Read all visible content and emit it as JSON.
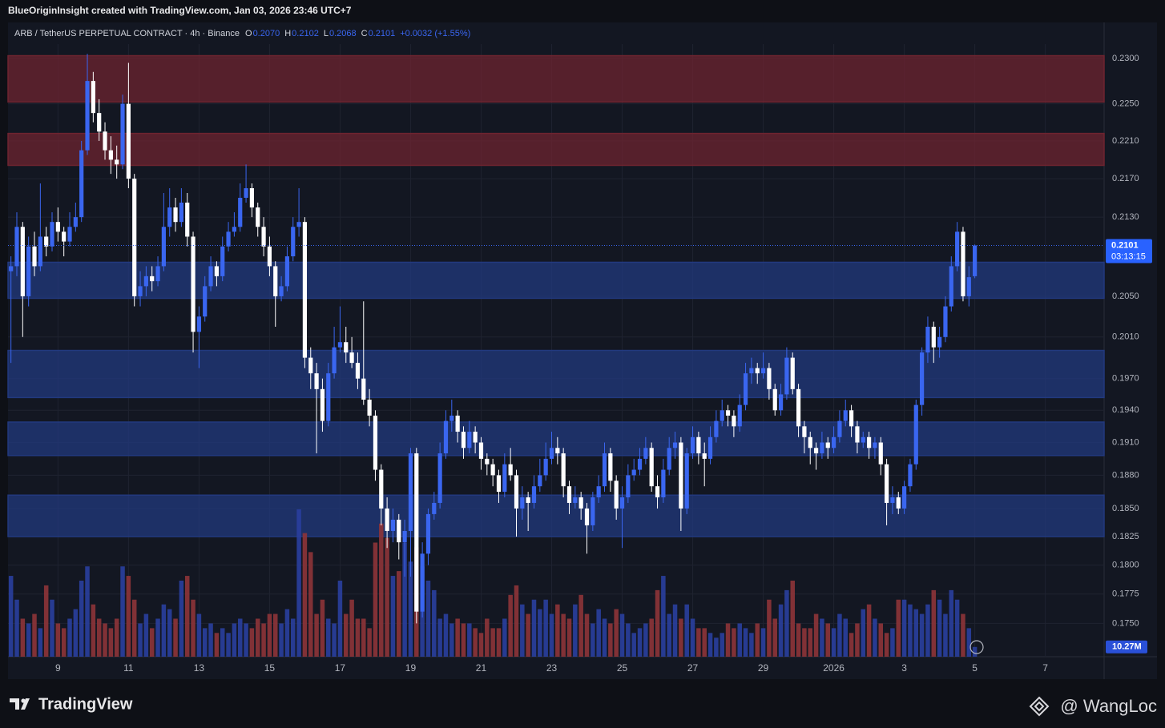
{
  "header": {
    "credit": "BlueOriginInsight created with TradingView.com, Jan 03, 2026 23:46 UTC+7"
  },
  "footer": {
    "brand": "TradingView",
    "watermark": "@ WangLoc"
  },
  "chart_data": {
    "type": "candlestick",
    "legend": {
      "symbol": "ARB / TetherUS PERPETUAL CONTRACT · 4h · Binance",
      "items": [
        {
          "key": "O",
          "value": "0.2070"
        },
        {
          "key": "H",
          "value": "0.2102"
        },
        {
          "key": "L",
          "value": "0.2068"
        },
        {
          "key": "C",
          "value": "0.2101"
        }
      ],
      "change": "+0.0032 (+1.55%)"
    },
    "log_scale": true,
    "grid": true,
    "up_color": "#3a66f0",
    "down_color": "#ffffff",
    "volume_up_color": "#2a3f9e",
    "volume_down_color": "#8e3438",
    "ylim": [
      0.1722,
      0.2316
    ],
    "yticks": [
      {
        "value": 0.23,
        "label": "0.2300"
      },
      {
        "value": 0.225,
        "label": "0.2250"
      },
      {
        "value": 0.221,
        "label": "0.2210"
      },
      {
        "value": 0.217,
        "label": "0.2170"
      },
      {
        "value": 0.213,
        "label": "0.2130"
      },
      {
        "value": 0.205,
        "label": "0.2050"
      },
      {
        "value": 0.201,
        "label": "0.2010"
      },
      {
        "value": 0.197,
        "label": "0.1970"
      },
      {
        "value": 0.194,
        "label": "0.1940"
      },
      {
        "value": 0.191,
        "label": "0.1910"
      },
      {
        "value": 0.188,
        "label": "0.1880"
      },
      {
        "value": 0.185,
        "label": "0.1850"
      },
      {
        "value": 0.1825,
        "label": "0.1825"
      },
      {
        "value": 0.18,
        "label": "0.1800"
      },
      {
        "value": 0.1775,
        "label": "0.1775"
      },
      {
        "value": 0.175,
        "label": "0.1750"
      }
    ],
    "xlim": [
      -0.5,
      186
    ],
    "xticks": [
      {
        "value": 8,
        "label": "9"
      },
      {
        "value": 20,
        "label": "11"
      },
      {
        "value": 32,
        "label": "13"
      },
      {
        "value": 44,
        "label": "15"
      },
      {
        "value": 56,
        "label": "17"
      },
      {
        "value": 68,
        "label": "19"
      },
      {
        "value": 80,
        "label": "21"
      },
      {
        "value": 92,
        "label": "23"
      },
      {
        "value": 104,
        "label": "25"
      },
      {
        "value": 116,
        "label": "27"
      },
      {
        "value": 128,
        "label": "29"
      },
      {
        "value": 140,
        "label": "2026"
      },
      {
        "value": 152,
        "label": "3"
      },
      {
        "value": 164,
        "label": "5"
      },
      {
        "value": 176,
        "label": "7"
      }
    ],
    "zones": [
      {
        "color": "#6e2430",
        "range": [
          0.2252,
          0.2303
        ]
      },
      {
        "color": "#6e2430",
        "range": [
          0.2184,
          0.2218
        ]
      },
      {
        "color": "#22397e",
        "range": [
          0.2048,
          0.2084
        ]
      },
      {
        "color": "#22397e",
        "range": [
          0.1952,
          0.1997
        ]
      },
      {
        "color": "#22397e",
        "range": [
          0.1898,
          0.1929
        ]
      },
      {
        "color": "#22397e",
        "range": [
          0.1825,
          0.1862
        ]
      }
    ],
    "last_price": {
      "value": 0.2101,
      "label": "0.2101"
    },
    "countdown": "03:13:15",
    "volume_label": "10.27M",
    "volume_ylim": [
      0,
      160
    ],
    "candles": [
      [
        0.2075,
        0.209,
        0.1985,
        0.208
      ],
      [
        0.208,
        0.2135,
        0.207,
        0.212
      ],
      [
        0.212,
        0.2125,
        0.201,
        0.205
      ],
      [
        0.205,
        0.211,
        0.204,
        0.21
      ],
      [
        0.21,
        0.2115,
        0.207,
        0.208
      ],
      [
        0.208,
        0.2165,
        0.2075,
        0.211
      ],
      [
        0.211,
        0.212,
        0.209,
        0.21
      ],
      [
        0.21,
        0.2135,
        0.2095,
        0.2125
      ],
      [
        0.2125,
        0.214,
        0.2105,
        0.2115
      ],
      [
        0.2115,
        0.212,
        0.209,
        0.2105
      ],
      [
        0.2105,
        0.2135,
        0.21,
        0.212
      ],
      [
        0.212,
        0.2145,
        0.2115,
        0.213
      ],
      [
        0.213,
        0.221,
        0.2125,
        0.22
      ],
      [
        0.22,
        0.2305,
        0.2195,
        0.2275
      ],
      [
        0.2275,
        0.2285,
        0.223,
        0.224
      ],
      [
        0.224,
        0.2255,
        0.221,
        0.222
      ],
      [
        0.222,
        0.223,
        0.219,
        0.22
      ],
      [
        0.22,
        0.2215,
        0.2175,
        0.219
      ],
      [
        0.219,
        0.2205,
        0.217,
        0.2185
      ],
      [
        0.2185,
        0.226,
        0.218,
        0.225
      ],
      [
        0.225,
        0.2295,
        0.216,
        0.217
      ],
      [
        0.217,
        0.2175,
        0.204,
        0.205
      ],
      [
        0.205,
        0.2075,
        0.204,
        0.206
      ],
      [
        0.206,
        0.208,
        0.205,
        0.207
      ],
      [
        0.207,
        0.208,
        0.2055,
        0.2065
      ],
      [
        0.2065,
        0.209,
        0.206,
        0.208
      ],
      [
        0.208,
        0.2155,
        0.2075,
        0.212
      ],
      [
        0.212,
        0.216,
        0.211,
        0.214
      ],
      [
        0.214,
        0.215,
        0.2115,
        0.2125
      ],
      [
        0.2125,
        0.216,
        0.212,
        0.2145
      ],
      [
        0.2145,
        0.2155,
        0.21,
        0.211
      ],
      [
        0.211,
        0.2115,
        0.1995,
        0.2015
      ],
      [
        0.2015,
        0.204,
        0.198,
        0.203
      ],
      [
        0.203,
        0.207,
        0.2025,
        0.206
      ],
      [
        0.206,
        0.209,
        0.2055,
        0.208
      ],
      [
        0.208,
        0.2085,
        0.206,
        0.207
      ],
      [
        0.207,
        0.211,
        0.2065,
        0.21
      ],
      [
        0.21,
        0.2125,
        0.2095,
        0.2115
      ],
      [
        0.2115,
        0.2135,
        0.211,
        0.212
      ],
      [
        0.212,
        0.2165,
        0.2115,
        0.215
      ],
      [
        0.215,
        0.2185,
        0.2145,
        0.216
      ],
      [
        0.216,
        0.2165,
        0.213,
        0.214
      ],
      [
        0.214,
        0.2145,
        0.211,
        0.212
      ],
      [
        0.212,
        0.213,
        0.209,
        0.21
      ],
      [
        0.21,
        0.211,
        0.207,
        0.208
      ],
      [
        0.208,
        0.2085,
        0.202,
        0.205
      ],
      [
        0.205,
        0.207,
        0.2045,
        0.206
      ],
      [
        0.206,
        0.21,
        0.2055,
        0.209
      ],
      [
        0.209,
        0.213,
        0.2085,
        0.212
      ],
      [
        0.212,
        0.216,
        0.211,
        0.2125
      ],
      [
        0.2125,
        0.213,
        0.198,
        0.199
      ],
      [
        0.199,
        0.2,
        0.196,
        0.1975
      ],
      [
        0.1975,
        0.1985,
        0.19,
        0.196
      ],
      [
        0.196,
        0.197,
        0.192,
        0.193
      ],
      [
        0.193,
        0.1985,
        0.1925,
        0.1975
      ],
      [
        0.1975,
        0.202,
        0.197,
        0.2
      ],
      [
        0.2,
        0.204,
        0.1995,
        0.2005
      ],
      [
        0.2005,
        0.202,
        0.1985,
        0.1995
      ],
      [
        0.1995,
        0.201,
        0.198,
        0.1985
      ],
      [
        0.1985,
        0.1995,
        0.196,
        0.197
      ],
      [
        0.197,
        0.2045,
        0.1945,
        0.195
      ],
      [
        0.195,
        0.196,
        0.1925,
        0.1935
      ],
      [
        0.1935,
        0.194,
        0.1875,
        0.1885
      ],
      [
        0.1885,
        0.189,
        0.1835,
        0.185
      ],
      [
        0.185,
        0.186,
        0.1815,
        0.183
      ],
      [
        0.183,
        0.185,
        0.182,
        0.184
      ],
      [
        0.184,
        0.1845,
        0.1805,
        0.182
      ],
      [
        0.182,
        0.184,
        0.179,
        0.183
      ],
      [
        0.183,
        0.1905,
        0.179,
        0.19
      ],
      [
        0.19,
        0.1905,
        0.175,
        0.176
      ],
      [
        0.176,
        0.182,
        0.1755,
        0.181
      ],
      [
        0.181,
        0.185,
        0.18,
        0.1845
      ],
      [
        0.1845,
        0.1865,
        0.184,
        0.1855
      ],
      [
        0.1855,
        0.191,
        0.185,
        0.19
      ],
      [
        0.19,
        0.194,
        0.1895,
        0.193
      ],
      [
        0.193,
        0.195,
        0.192,
        0.1935
      ],
      [
        0.1935,
        0.194,
        0.191,
        0.192
      ],
      [
        0.192,
        0.1925,
        0.1895,
        0.1905
      ],
      [
        0.1905,
        0.193,
        0.19,
        0.192
      ],
      [
        0.192,
        0.1925,
        0.19,
        0.191
      ],
      [
        0.191,
        0.1915,
        0.1885,
        0.1895
      ],
      [
        0.1895,
        0.19,
        0.188,
        0.189
      ],
      [
        0.189,
        0.1895,
        0.187,
        0.188
      ],
      [
        0.188,
        0.1885,
        0.1855,
        0.1865
      ],
      [
        0.1865,
        0.19,
        0.186,
        0.189
      ],
      [
        0.189,
        0.1905,
        0.1875,
        0.188
      ],
      [
        0.188,
        0.1885,
        0.1825,
        0.185
      ],
      [
        0.185,
        0.187,
        0.184,
        0.186
      ],
      [
        0.186,
        0.1865,
        0.183,
        0.1855
      ],
      [
        0.1855,
        0.188,
        0.185,
        0.187
      ],
      [
        0.187,
        0.1895,
        0.1865,
        0.188
      ],
      [
        0.188,
        0.191,
        0.1875,
        0.1895
      ],
      [
        0.1895,
        0.192,
        0.189,
        0.1905
      ],
      [
        0.1905,
        0.1915,
        0.189,
        0.19
      ],
      [
        0.19,
        0.1905,
        0.186,
        0.187
      ],
      [
        0.187,
        0.1875,
        0.1845,
        0.1855
      ],
      [
        0.1855,
        0.187,
        0.185,
        0.186
      ],
      [
        0.186,
        0.1865,
        0.184,
        0.185
      ],
      [
        0.185,
        0.1855,
        0.181,
        0.1835
      ],
      [
        0.1835,
        0.1865,
        0.183,
        0.186
      ],
      [
        0.186,
        0.188,
        0.1855,
        0.187
      ],
      [
        0.187,
        0.191,
        0.1865,
        0.19
      ],
      [
        0.19,
        0.1905,
        0.1865,
        0.1875
      ],
      [
        0.1875,
        0.188,
        0.184,
        0.185
      ],
      [
        0.185,
        0.187,
        0.1815,
        0.186
      ],
      [
        0.186,
        0.189,
        0.1855,
        0.188
      ],
      [
        0.188,
        0.1895,
        0.1875,
        0.1885
      ],
      [
        0.1885,
        0.1905,
        0.188,
        0.1895
      ],
      [
        0.1895,
        0.1915,
        0.189,
        0.1905
      ],
      [
        0.1905,
        0.191,
        0.1865,
        0.187
      ],
      [
        0.187,
        0.188,
        0.185,
        0.186
      ],
      [
        0.186,
        0.1895,
        0.1855,
        0.1885
      ],
      [
        0.1885,
        0.1915,
        0.188,
        0.1905
      ],
      [
        0.1905,
        0.192,
        0.1895,
        0.191
      ],
      [
        0.191,
        0.1915,
        0.183,
        0.185
      ],
      [
        0.185,
        0.1905,
        0.1845,
        0.19
      ],
      [
        0.19,
        0.1925,
        0.1895,
        0.1915
      ],
      [
        0.1915,
        0.192,
        0.189,
        0.19
      ],
      [
        0.19,
        0.191,
        0.187,
        0.1895
      ],
      [
        0.1895,
        0.1925,
        0.189,
        0.1915
      ],
      [
        0.1915,
        0.194,
        0.191,
        0.193
      ],
      [
        0.193,
        0.195,
        0.1925,
        0.194
      ],
      [
        0.194,
        0.1945,
        0.1925,
        0.1935
      ],
      [
        0.1935,
        0.194,
        0.1915,
        0.1925
      ],
      [
        0.1925,
        0.1955,
        0.192,
        0.1945
      ],
      [
        0.1945,
        0.1985,
        0.194,
        0.1975
      ],
      [
        0.1975,
        0.199,
        0.1965,
        0.198
      ],
      [
        0.198,
        0.1985,
        0.1965,
        0.1975
      ],
      [
        0.1975,
        0.1995,
        0.197,
        0.198
      ],
      [
        0.198,
        0.1985,
        0.195,
        0.196
      ],
      [
        0.196,
        0.1965,
        0.1935,
        0.194
      ],
      [
        0.194,
        0.1965,
        0.1935,
        0.1955
      ],
      [
        0.1955,
        0.2,
        0.195,
        0.199
      ],
      [
        0.199,
        0.1995,
        0.1955,
        0.196
      ],
      [
        0.196,
        0.1965,
        0.1915,
        0.1925
      ],
      [
        0.1925,
        0.193,
        0.19,
        0.1915
      ],
      [
        0.1915,
        0.192,
        0.189,
        0.1905
      ],
      [
        0.1905,
        0.191,
        0.1885,
        0.19
      ],
      [
        0.19,
        0.192,
        0.1895,
        0.191
      ],
      [
        0.191,
        0.1915,
        0.1895,
        0.1905
      ],
      [
        0.1905,
        0.1925,
        0.19,
        0.1915
      ],
      [
        0.1915,
        0.194,
        0.191,
        0.193
      ],
      [
        0.193,
        0.195,
        0.1925,
        0.194
      ],
      [
        0.194,
        0.1945,
        0.1915,
        0.1925
      ],
      [
        0.1925,
        0.193,
        0.19,
        0.191
      ],
      [
        0.191,
        0.192,
        0.1905,
        0.1915
      ],
      [
        0.1915,
        0.192,
        0.1895,
        0.1905
      ],
      [
        0.1905,
        0.1915,
        0.1895,
        0.191
      ],
      [
        0.191,
        0.1915,
        0.188,
        0.189
      ],
      [
        0.189,
        0.1895,
        0.1835,
        0.1855
      ],
      [
        0.1855,
        0.187,
        0.1845,
        0.186
      ],
      [
        0.186,
        0.1865,
        0.1845,
        0.185
      ],
      [
        0.185,
        0.1875,
        0.1845,
        0.187
      ],
      [
        0.187,
        0.1895,
        0.1865,
        0.189
      ],
      [
        0.189,
        0.195,
        0.1885,
        0.1945
      ],
      [
        0.1945,
        0.2,
        0.1935,
        0.1995
      ],
      [
        0.1995,
        0.203,
        0.1985,
        0.202
      ],
      [
        0.202,
        0.2025,
        0.1985,
        0.2
      ],
      [
        0.2,
        0.202,
        0.199,
        0.201
      ],
      [
        0.201,
        0.205,
        0.2005,
        0.204
      ],
      [
        0.204,
        0.209,
        0.2035,
        0.208
      ],
      [
        0.208,
        0.2125,
        0.2075,
        0.2115
      ],
      [
        0.2115,
        0.212,
        0.2045,
        0.205
      ],
      [
        0.205,
        0.208,
        0.204,
        0.2069
      ],
      [
        0.207,
        0.2102,
        0.2068,
        0.2101
      ]
    ],
    "volume": [
      85,
      60,
      40,
      35,
      45,
      30,
      75,
      60,
      35,
      30,
      40,
      50,
      80,
      95,
      55,
      40,
      35,
      30,
      40,
      95,
      85,
      60,
      35,
      45,
      30,
      40,
      55,
      50,
      40,
      80,
      85,
      60,
      45,
      30,
      35,
      25,
      30,
      25,
      35,
      40,
      35,
      30,
      40,
      35,
      45,
      45,
      35,
      50,
      40,
      155,
      130,
      110,
      45,
      60,
      40,
      35,
      80,
      45,
      60,
      40,
      40,
      30,
      120,
      140,
      125,
      85,
      90,
      120,
      100,
      115,
      95,
      80,
      70,
      40,
      45,
      35,
      40,
      35,
      35,
      30,
      25,
      40,
      30,
      30,
      40,
      65,
      75,
      55,
      45,
      60,
      50,
      60,
      45,
      55,
      45,
      40,
      55,
      65,
      45,
      35,
      50,
      40,
      35,
      50,
      45,
      35,
      25,
      30,
      35,
      40,
      70,
      85,
      45,
      55,
      40,
      55,
      40,
      30,
      30,
      25,
      20,
      25,
      35,
      30,
      35,
      30,
      25,
      35,
      30,
      60,
      40,
      55,
      70,
      80,
      35,
      30,
      30,
      45,
      40,
      35,
      30,
      45,
      40,
      25,
      35,
      50,
      55,
      40,
      35,
      25,
      30,
      60,
      60,
      55,
      50,
      45,
      55,
      70,
      60,
      45,
      70,
      60,
      45,
      30,
      10.27
    ]
  }
}
